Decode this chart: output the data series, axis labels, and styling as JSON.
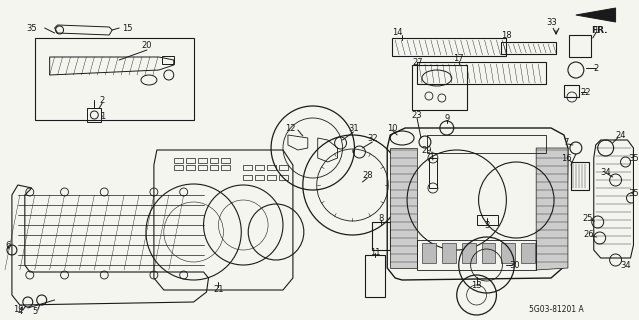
{
  "bg_color": "#f5f5f0",
  "fig_width": 6.39,
  "fig_height": 3.2,
  "dpi": 100,
  "diagram_code": "5G03-81201 A",
  "fr_label": "FR.",
  "line_color": "#1a1a1a",
  "text_color": "#1a1a1a",
  "font_size": 6.0
}
